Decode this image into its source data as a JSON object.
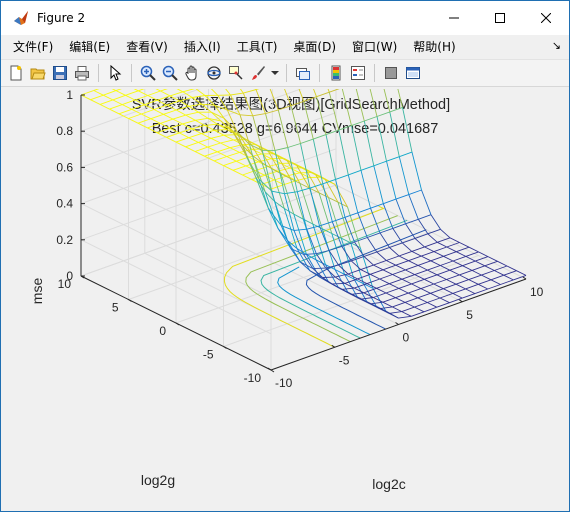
{
  "window": {
    "title": "Figure 2"
  },
  "menu": {
    "items": [
      "文件(F)",
      "编辑(E)",
      "查看(V)",
      "插入(I)",
      "工具(T)",
      "桌面(D)",
      "窗口(W)",
      "帮助(H)"
    ],
    "overflow_arrow": "↘"
  },
  "toolbar": {
    "buttons": [
      "new-figure-icon",
      "open-file-icon",
      "save-icon",
      "print-icon",
      "select-arrow-icon",
      "zoom-in-icon",
      "zoom-out-icon",
      "pan-hand-icon",
      "rotate-3d-icon",
      "data-cursor-icon",
      "brush-icon",
      "brush-dropdown-icon",
      "link-plot-icon",
      "colorbar-icon",
      "legend-icon",
      "hide-plot-tools-icon",
      "show-plot-tools-icon"
    ]
  },
  "chart_data": {
    "type": "surface",
    "title_line1": "SVR参数选择结果图(3D视图)[GridSearchMethod]",
    "title_line2": "Best c=0.43528 g=6.9644 CVmse=0.041687",
    "xlabel": "log2c",
    "ylabel": "log2g",
    "zlabel": "mse",
    "xlim": [
      -10,
      10
    ],
    "ylim": [
      -10,
      10
    ],
    "zlim": [
      0,
      1
    ],
    "xticks": [
      "-10",
      "-5",
      "0",
      "5",
      "10"
    ],
    "yticks": [
      "-10",
      "-5",
      "0",
      "5",
      "10"
    ],
    "zticks": [
      "0",
      "0.2",
      "0.4",
      "0.6",
      "0.8",
      "1"
    ],
    "grid": true,
    "colormap": "parula",
    "grid_step": 1,
    "best": {
      "c": 0.43528,
      "g": 6.9644,
      "mse": 0.041687
    }
  }
}
